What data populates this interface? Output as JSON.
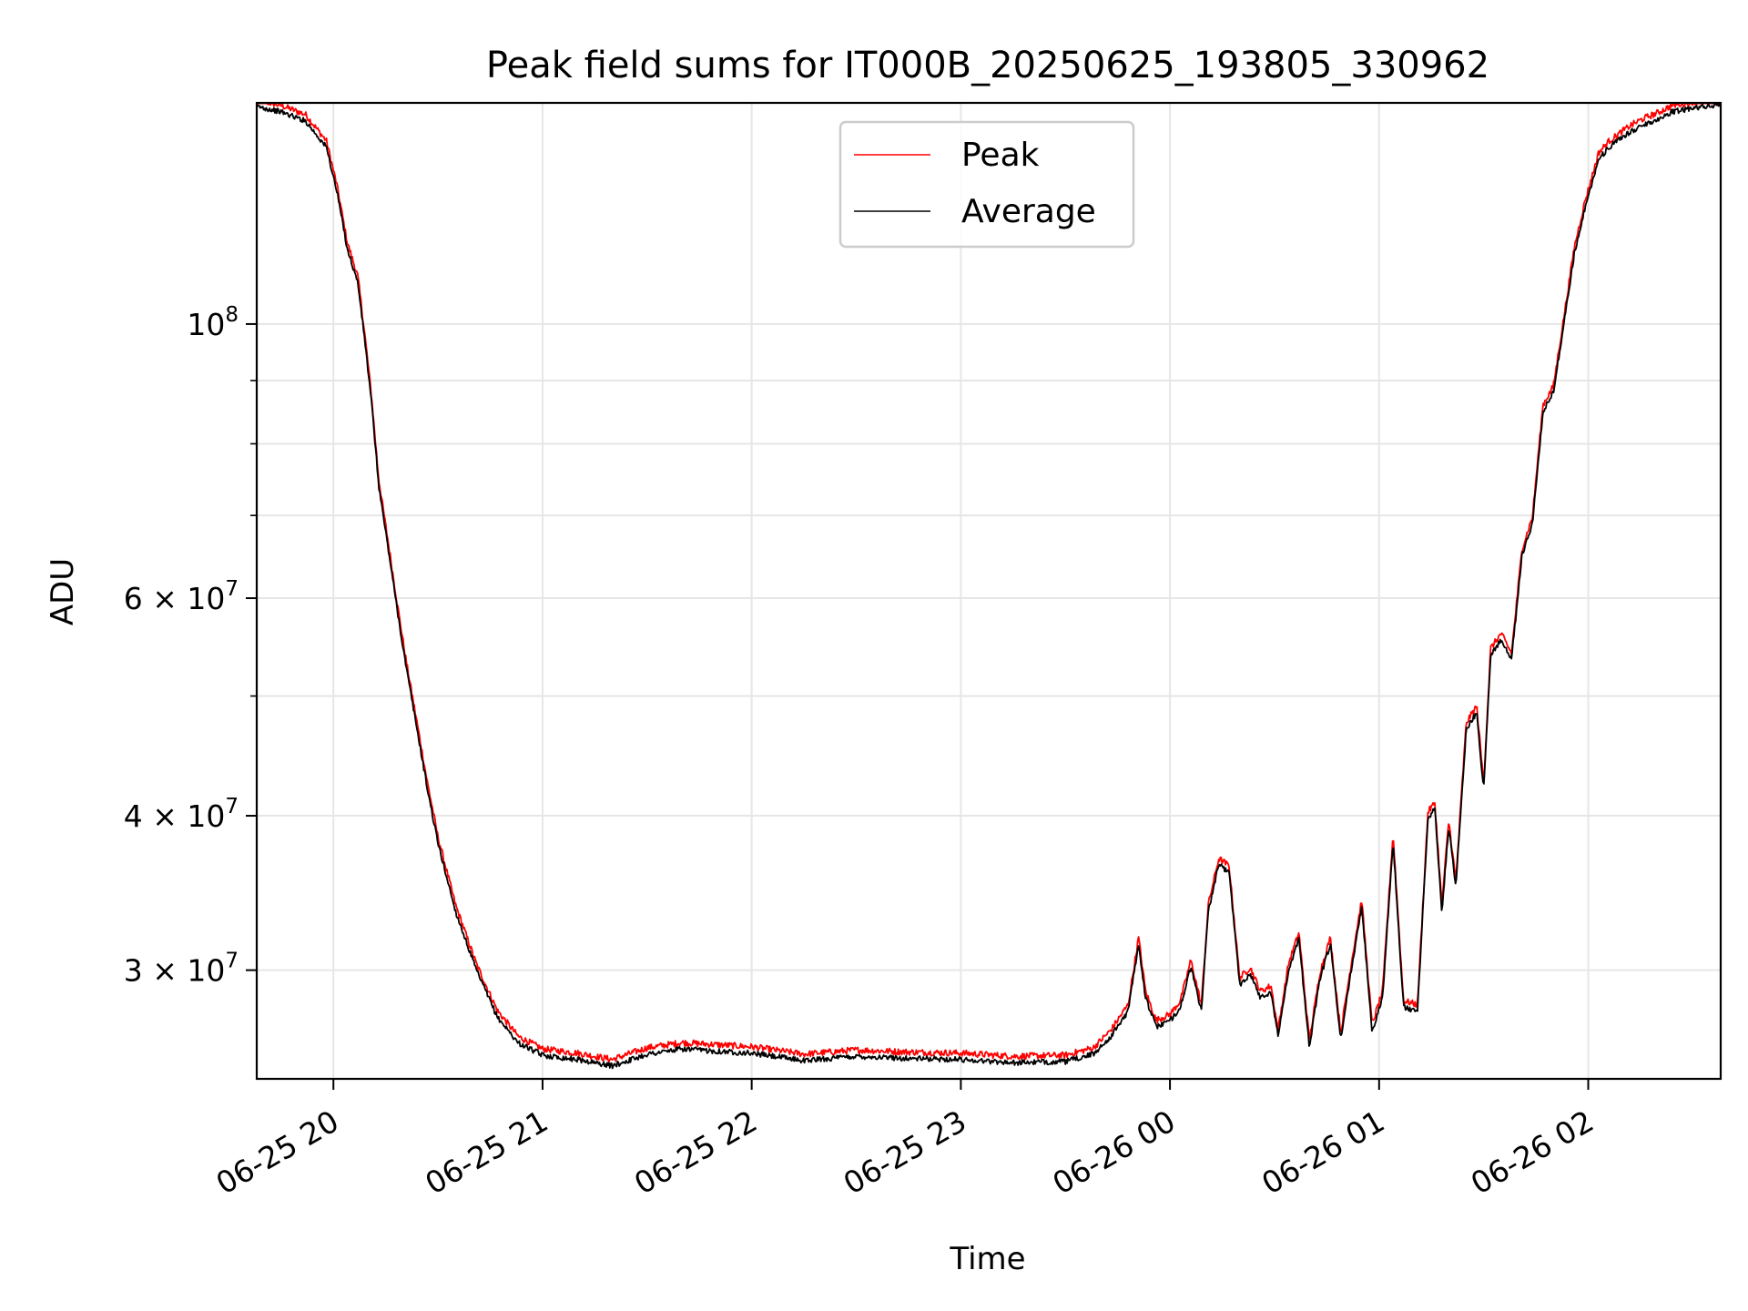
{
  "chart_data": {
    "type": "line",
    "title": "Peak field sums for IT000B_20250625_193805_330962",
    "xlabel": "Time",
    "ylabel": "ADU",
    "yscale": "log",
    "xlim": [
      "2025-06-25 19:38",
      "2025-06-26 02:38"
    ],
    "ylim": [
      24500000,
      151000000
    ],
    "grid": true,
    "legend": "top-center",
    "x_ticks": [
      {
        "label": "06-25 20",
        "t": "2025-06-25 20:00"
      },
      {
        "label": "06-25 21",
        "t": "2025-06-25 21:00"
      },
      {
        "label": "06-25 22",
        "t": "2025-06-25 22:00"
      },
      {
        "label": "06-25 23",
        "t": "2025-06-25 23:00"
      },
      {
        "label": "06-26 00",
        "t": "2025-06-26 00:00"
      },
      {
        "label": "06-26 01",
        "t": "2025-06-26 01:00"
      },
      {
        "label": "06-26 02",
        "t": "2025-06-26 02:00"
      }
    ],
    "y_ticks_major": [
      {
        "value": 100000000,
        "base": "10",
        "exp": "8",
        "mant": ""
      },
      {
        "value": 60000000,
        "base": "10",
        "exp": "7",
        "mant": "6 × "
      },
      {
        "value": 40000000,
        "base": "10",
        "exp": "7",
        "mant": "4 × "
      },
      {
        "value": 30000000,
        "base": "10",
        "exp": "7",
        "mant": "3 × "
      }
    ],
    "y_grid_minor": [
      90000000,
      80000000,
      70000000,
      50000000
    ],
    "series": [
      {
        "name": "Peak",
        "color": "#ff0000",
        "offset": 1.012,
        "jitter": 0.006
      },
      {
        "name": "Average",
        "color": "#000000",
        "offset": 1.0,
        "jitter": 0.005
      }
    ],
    "x": [
      "2025-06-25 19:38",
      "2025-06-25 19:45",
      "2025-06-25 19:52",
      "2025-06-25 19:58",
      "2025-06-25 20:01",
      "2025-06-25 20:04",
      "2025-06-25 20:07",
      "2025-06-25 20:09",
      "2025-06-25 20:11",
      "2025-06-25 20:13",
      "2025-06-25 20:16",
      "2025-06-25 20:19",
      "2025-06-25 20:21",
      "2025-06-25 20:24",
      "2025-06-25 20:27",
      "2025-06-25 20:30",
      "2025-06-25 20:35",
      "2025-06-25 20:41",
      "2025-06-25 20:47",
      "2025-06-25 20:53",
      "2025-06-25 21:00",
      "2025-06-25 21:10",
      "2025-06-25 21:20",
      "2025-06-25 21:30",
      "2025-06-25 21:40",
      "2025-06-25 21:50",
      "2025-06-25 22:00",
      "2025-06-25 22:15",
      "2025-06-25 22:30",
      "2025-06-25 22:45",
      "2025-06-25 23:00",
      "2025-06-25 23:15",
      "2025-06-25 23:30",
      "2025-06-25 23:38",
      "2025-06-25 23:43",
      "2025-06-25 23:48",
      "2025-06-25 23:51",
      "2025-06-25 23:53",
      "2025-06-25 23:56",
      "2025-06-26 00:00",
      "2025-06-26 00:03",
      "2025-06-26 00:06",
      "2025-06-26 00:09",
      "2025-06-26 00:11",
      "2025-06-26 00:14",
      "2025-06-26 00:17",
      "2025-06-26 00:20",
      "2025-06-26 00:23",
      "2025-06-26 00:26",
      "2025-06-26 00:29",
      "2025-06-26 00:31",
      "2025-06-26 00:34",
      "2025-06-26 00:37",
      "2025-06-26 00:40",
      "2025-06-26 00:43",
      "2025-06-26 00:46",
      "2025-06-26 00:49",
      "2025-06-26 00:52",
      "2025-06-26 00:55",
      "2025-06-26 00:58",
      "2025-06-26 01:01",
      "2025-06-26 01:04",
      "2025-06-26 01:07",
      "2025-06-26 01:11",
      "2025-06-26 01:14",
      "2025-06-26 01:16",
      "2025-06-26 01:18",
      "2025-06-26 01:20",
      "2025-06-26 01:22",
      "2025-06-26 01:25",
      "2025-06-26 01:28",
      "2025-06-26 01:30",
      "2025-06-26 01:32",
      "2025-06-26 01:35",
      "2025-06-26 01:38",
      "2025-06-26 01:41",
      "2025-06-26 01:44",
      "2025-06-26 01:47",
      "2025-06-26 01:50",
      "2025-06-26 01:53",
      "2025-06-26 01:56",
      "2025-06-26 01:59",
      "2025-06-26 02:03",
      "2025-06-26 02:06",
      "2025-06-26 02:09",
      "2025-06-26 02:12",
      "2025-06-26 02:16",
      "2025-06-26 02:20",
      "2025-06-26 02:24",
      "2025-06-26 02:30",
      "2025-06-26 02:38"
    ],
    "y": [
      150000000,
      148500000,
      146000000,
      139000000,
      128000000,
      115000000,
      108000000,
      97000000,
      86000000,
      74000000,
      65000000,
      57000000,
      52500000,
      47000000,
      42000000,
      38000000,
      33500000,
      30000000,
      27500000,
      26200000,
      25600000,
      25400000,
      25100000,
      25650000,
      25900000,
      25800000,
      25700000,
      25350000,
      25550000,
      25450000,
      25400000,
      25250000,
      25300000,
      25650000,
      26500000,
      27800000,
      31500000,
      28500000,
      27000000,
      27300000,
      28000000,
      30200000,
      27800000,
      33500000,
      36500000,
      36000000,
      29200000,
      29800000,
      28500000,
      28800000,
      26500000,
      30000000,
      31800000,
      26000000,
      29500000,
      31500000,
      26400000,
      30000000,
      33800000,
      26800000,
      28500000,
      38200000,
      28000000,
      27800000,
      39800000,
      40500000,
      33500000,
      39200000,
      35000000,
      47000000,
      48500000,
      42000000,
      54000000,
      55500000,
      53500000,
      65000000,
      69000000,
      85000000,
      88000000,
      100000000,
      114000000,
      124000000,
      136000000,
      139000000,
      141000000,
      143000000,
      145000000,
      146500000,
      148500000,
      149500000,
      150500000
    ]
  }
}
